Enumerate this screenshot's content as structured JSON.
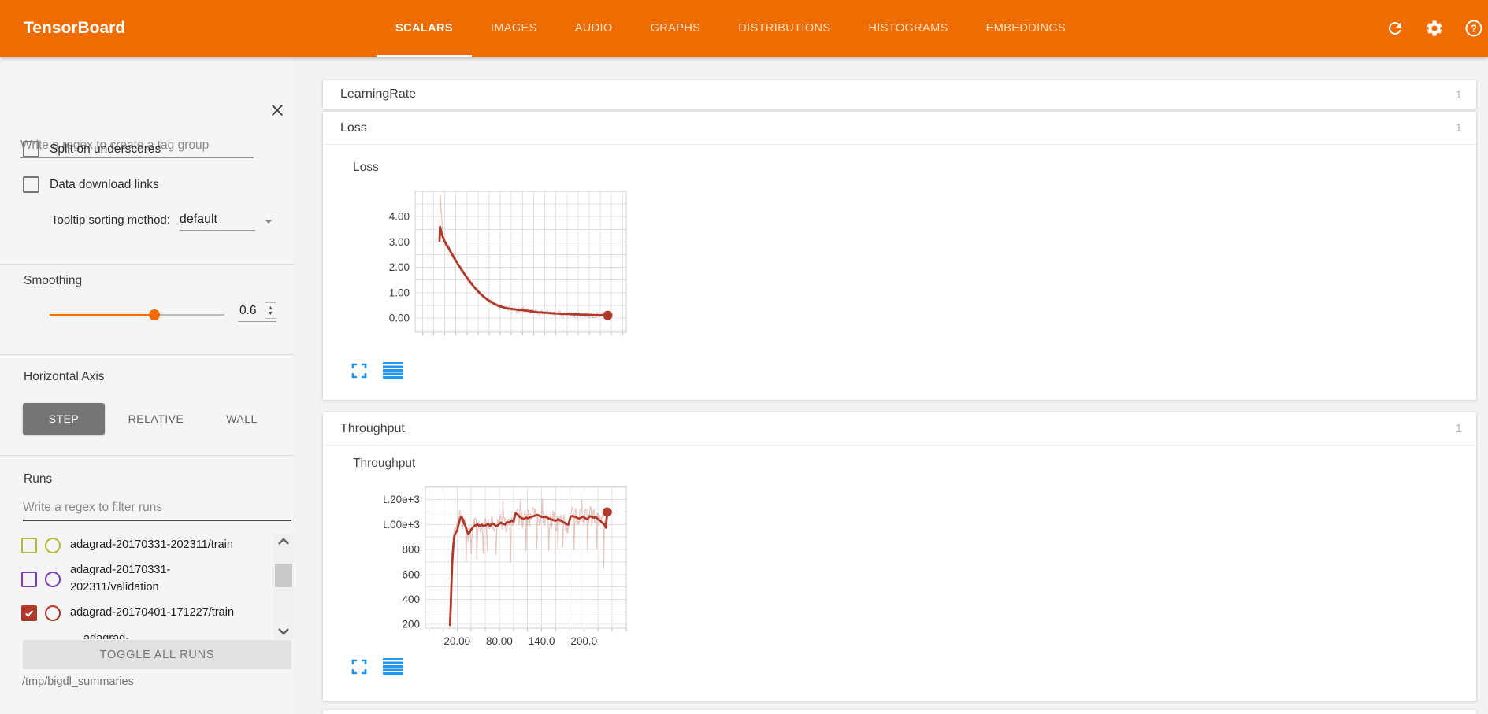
{
  "header": {
    "title": "TensorBoard",
    "tabs": [
      {
        "label": "SCALARS",
        "active": true
      },
      {
        "label": "IMAGES",
        "active": false
      },
      {
        "label": "AUDIO",
        "active": false
      },
      {
        "label": "GRAPHS",
        "active": false
      },
      {
        "label": "DISTRIBUTIONS",
        "active": false
      },
      {
        "label": "HISTOGRAMS",
        "active": false
      },
      {
        "label": "EMBEDDINGS",
        "active": false
      }
    ],
    "icons": [
      "refresh",
      "settings",
      "help"
    ],
    "accent_color": "#ef6c00"
  },
  "sidebar": {
    "tag_filter_placeholder": "Write a regex to create a tag group",
    "checkboxes": [
      {
        "label": "Split on underscores",
        "checked": false
      },
      {
        "label": "Data download links",
        "checked": false
      }
    ],
    "tooltip_sorting": {
      "label": "Tooltip sorting method:",
      "value": "default"
    },
    "smoothing": {
      "label": "Smoothing",
      "value": "0.6",
      "percent": 60
    },
    "horizontal_axis": {
      "label": "Horizontal Axis",
      "options": [
        {
          "label": "STEP",
          "active": true
        },
        {
          "label": "RELATIVE",
          "active": false
        },
        {
          "label": "WALL",
          "active": false
        }
      ]
    },
    "runs": {
      "label": "Runs",
      "filter_placeholder": "Write a regex to filter runs",
      "items": [
        {
          "name": "adagrad-20170331-202311/train",
          "color": "#b3bd33",
          "checked": false,
          "partial": false
        },
        {
          "name": "adagrad-20170331-202311/validation",
          "color": "#7d3cbd",
          "checked": false,
          "partial": false
        },
        {
          "name": "adagrad-20170401-171227/train",
          "color": "#b0392b",
          "checked": true,
          "partial": false
        },
        {
          "name": "adagrad-",
          "color": "#9e9e9e",
          "checked": false,
          "partial": true
        }
      ],
      "toggle_all_label": "TOGGLE ALL RUNS",
      "log_dir": "/tmp/bigdl_summaries"
    }
  },
  "main": {
    "sections": [
      {
        "title": "LearningRate",
        "count": "1",
        "expanded": false
      },
      {
        "title": "Loss",
        "count": "1",
        "expanded": true
      },
      {
        "title": "Throughput",
        "count": "1",
        "expanded": true
      }
    ]
  },
  "chart_data": [
    {
      "type": "line",
      "title": "Loss",
      "run": "adagrad-20170401-171227/train",
      "color": "#b0392b",
      "raw_color": "#cc8f85",
      "x_range": [
        -25,
        260
      ],
      "y_range": [
        -0.56,
        5.0
      ],
      "grid": {
        "x_step": 15,
        "y_step": 0.5
      },
      "y_ticks": [
        {
          "v": 0,
          "label": "0.00"
        },
        {
          "v": 1,
          "label": "1.00"
        },
        {
          "v": 2,
          "label": "2.00"
        },
        {
          "v": 3,
          "label": "3.00"
        },
        {
          "v": 4,
          "label": "4.00"
        }
      ],
      "x_ticks": [],
      "smoothed": [
        [
          8,
          3.05
        ],
        [
          8.6,
          3.6
        ],
        [
          11,
          3.3
        ],
        [
          14,
          3.08
        ],
        [
          17,
          2.9
        ],
        [
          20,
          2.78
        ],
        [
          24,
          2.56
        ],
        [
          28,
          2.35
        ],
        [
          32,
          2.17
        ],
        [
          36,
          1.98
        ],
        [
          40,
          1.8
        ],
        [
          44,
          1.63
        ],
        [
          48,
          1.47
        ],
        [
          52,
          1.32
        ],
        [
          56,
          1.18
        ],
        [
          60,
          1.05
        ],
        [
          64,
          0.93
        ],
        [
          68,
          0.83
        ],
        [
          72,
          0.74
        ],
        [
          76,
          0.66
        ],
        [
          80,
          0.59
        ],
        [
          84,
          0.53
        ],
        [
          88,
          0.48
        ],
        [
          92,
          0.44
        ],
        [
          96,
          0.41
        ],
        [
          100,
          0.38
        ],
        [
          105,
          0.36
        ],
        [
          110,
          0.34
        ],
        [
          115,
          0.32
        ],
        [
          120,
          0.31
        ],
        [
          125,
          0.29
        ],
        [
          130,
          0.27
        ],
        [
          135,
          0.25
        ],
        [
          140,
          0.23
        ],
        [
          145,
          0.22
        ],
        [
          150,
          0.21
        ],
        [
          155,
          0.2
        ],
        [
          160,
          0.19
        ],
        [
          165,
          0.18
        ],
        [
          170,
          0.17
        ],
        [
          175,
          0.165
        ],
        [
          180,
          0.16
        ],
        [
          185,
          0.15
        ],
        [
          190,
          0.145
        ],
        [
          195,
          0.14
        ],
        [
          200,
          0.135
        ],
        [
          205,
          0.13
        ],
        [
          210,
          0.125
        ],
        [
          215,
          0.12
        ],
        [
          220,
          0.115
        ],
        [
          225,
          0.11
        ],
        [
          230,
          0.108
        ],
        [
          235,
          0.105
        ]
      ],
      "end_dot": [
        235,
        0.105
      ],
      "raw": {
        "amp": 0.12,
        "from": 8,
        "to": 235,
        "step": 1,
        "spikes": [
          [
            9,
            4.85
          ],
          [
            10,
            4.3
          ],
          [
            11,
            3.9
          ]
        ]
      }
    },
    {
      "type": "line",
      "title": "Throughput",
      "run": "adagrad-20170401-171227/train",
      "color": "#b0392b",
      "raw_color": "#cc8f85",
      "x_range": [
        -25,
        260
      ],
      "y_range": [
        170,
        1305
      ],
      "grid": {
        "x_step": 20,
        "y_step": 100
      },
      "y_ticks": [
        {
          "v": 200,
          "label": "200"
        },
        {
          "v": 400,
          "label": "400"
        },
        {
          "v": 600,
          "label": "600"
        },
        {
          "v": 800,
          "label": "800"
        },
        {
          "v": 1000,
          "label": "1.00e+3"
        },
        {
          "v": 1200,
          "label": "1.20e+3"
        }
      ],
      "x_ticks": [
        {
          "v": 20,
          "label": "20.00"
        },
        {
          "v": 80,
          "label": "80.00"
        },
        {
          "v": 140,
          "label": "140.0"
        },
        {
          "v": 200,
          "label": "200.0"
        }
      ],
      "smoothed": [
        [
          10,
          195
        ],
        [
          11,
          340
        ],
        [
          12,
          520
        ],
        [
          13,
          680
        ],
        [
          14,
          780
        ],
        [
          15,
          855
        ],
        [
          16,
          905
        ],
        [
          18,
          935
        ],
        [
          20,
          950
        ],
        [
          22,
          1000
        ],
        [
          24,
          1040
        ],
        [
          26,
          1065
        ],
        [
          28,
          1045
        ],
        [
          30,
          1010
        ],
        [
          32,
          985
        ],
        [
          34,
          950
        ],
        [
          36,
          925
        ],
        [
          38,
          940
        ],
        [
          40,
          960
        ],
        [
          43,
          980
        ],
        [
          46,
          995
        ],
        [
          49,
          1000
        ],
        [
          52,
          990
        ],
        [
          55,
          1000
        ],
        [
          58,
          985
        ],
        [
          61,
          995
        ],
        [
          64,
          1005
        ],
        [
          67,
          990
        ],
        [
          70,
          1010
        ],
        [
          73,
          1000
        ],
        [
          76,
          985
        ],
        [
          79,
          1000
        ],
        [
          82,
          1015
        ],
        [
          85,
          1005
        ],
        [
          88,
          1000
        ],
        [
          91,
          1020
        ],
        [
          94,
          1015
        ],
        [
          97,
          1030
        ],
        [
          100,
          1025
        ],
        [
          103,
          1090
        ],
        [
          106,
          1080
        ],
        [
          109,
          1060
        ],
        [
          112,
          1050
        ],
        [
          115,
          1045
        ],
        [
          118,
          1055
        ],
        [
          121,
          1050
        ],
        [
          124,
          1060
        ],
        [
          127,
          1065
        ],
        [
          130,
          1070
        ],
        [
          133,
          1078
        ],
        [
          136,
          1072
        ],
        [
          139,
          1065
        ],
        [
          142,
          1060
        ],
        [
          145,
          1062
        ],
        [
          148,
          1055
        ],
        [
          151,
          1048
        ],
        [
          154,
          1040
        ],
        [
          157,
          1035
        ],
        [
          160,
          1030
        ],
        [
          163,
          1042
        ],
        [
          166,
          1035
        ],
        [
          169,
          1025
        ],
        [
          172,
          1015
        ],
        [
          175,
          1005
        ],
        [
          178,
          1000
        ],
        [
          181,
          1062
        ],
        [
          184,
          1070
        ],
        [
          187,
          1062
        ],
        [
          190,
          1055
        ],
        [
          193,
          1048
        ],
        [
          196,
          1055
        ],
        [
          199,
          1065
        ],
        [
          202,
          1050
        ],
        [
          205,
          1042
        ],
        [
          208,
          1068
        ],
        [
          211,
          1062
        ],
        [
          214,
          1055
        ],
        [
          217,
          1060
        ],
        [
          220,
          1042
        ],
        [
          223,
          1030
        ],
        [
          226,
          1015
        ],
        [
          229,
          1000
        ],
        [
          231,
          975
        ],
        [
          233,
          1100
        ]
      ],
      "end_dot": [
        233,
        1100
      ],
      "raw": {
        "amp": 80,
        "from": 11,
        "to": 233,
        "step": 1,
        "spikes": [
          [
            33,
            705
          ],
          [
            40,
            765
          ],
          [
            48,
            720
          ],
          [
            57,
            770
          ],
          [
            63,
            785
          ],
          [
            75,
            755
          ],
          [
            85,
            1190
          ],
          [
            96,
            700
          ],
          [
            110,
            1195
          ],
          [
            118,
            790
          ],
          [
            133,
            795
          ],
          [
            141,
            1205
          ],
          [
            150,
            785
          ],
          [
            163,
            805
          ],
          [
            170,
            825
          ],
          [
            186,
            795
          ],
          [
            197,
            1200
          ],
          [
            205,
            790
          ],
          [
            218,
            800
          ],
          [
            228,
            645
          ]
        ]
      }
    }
  ]
}
